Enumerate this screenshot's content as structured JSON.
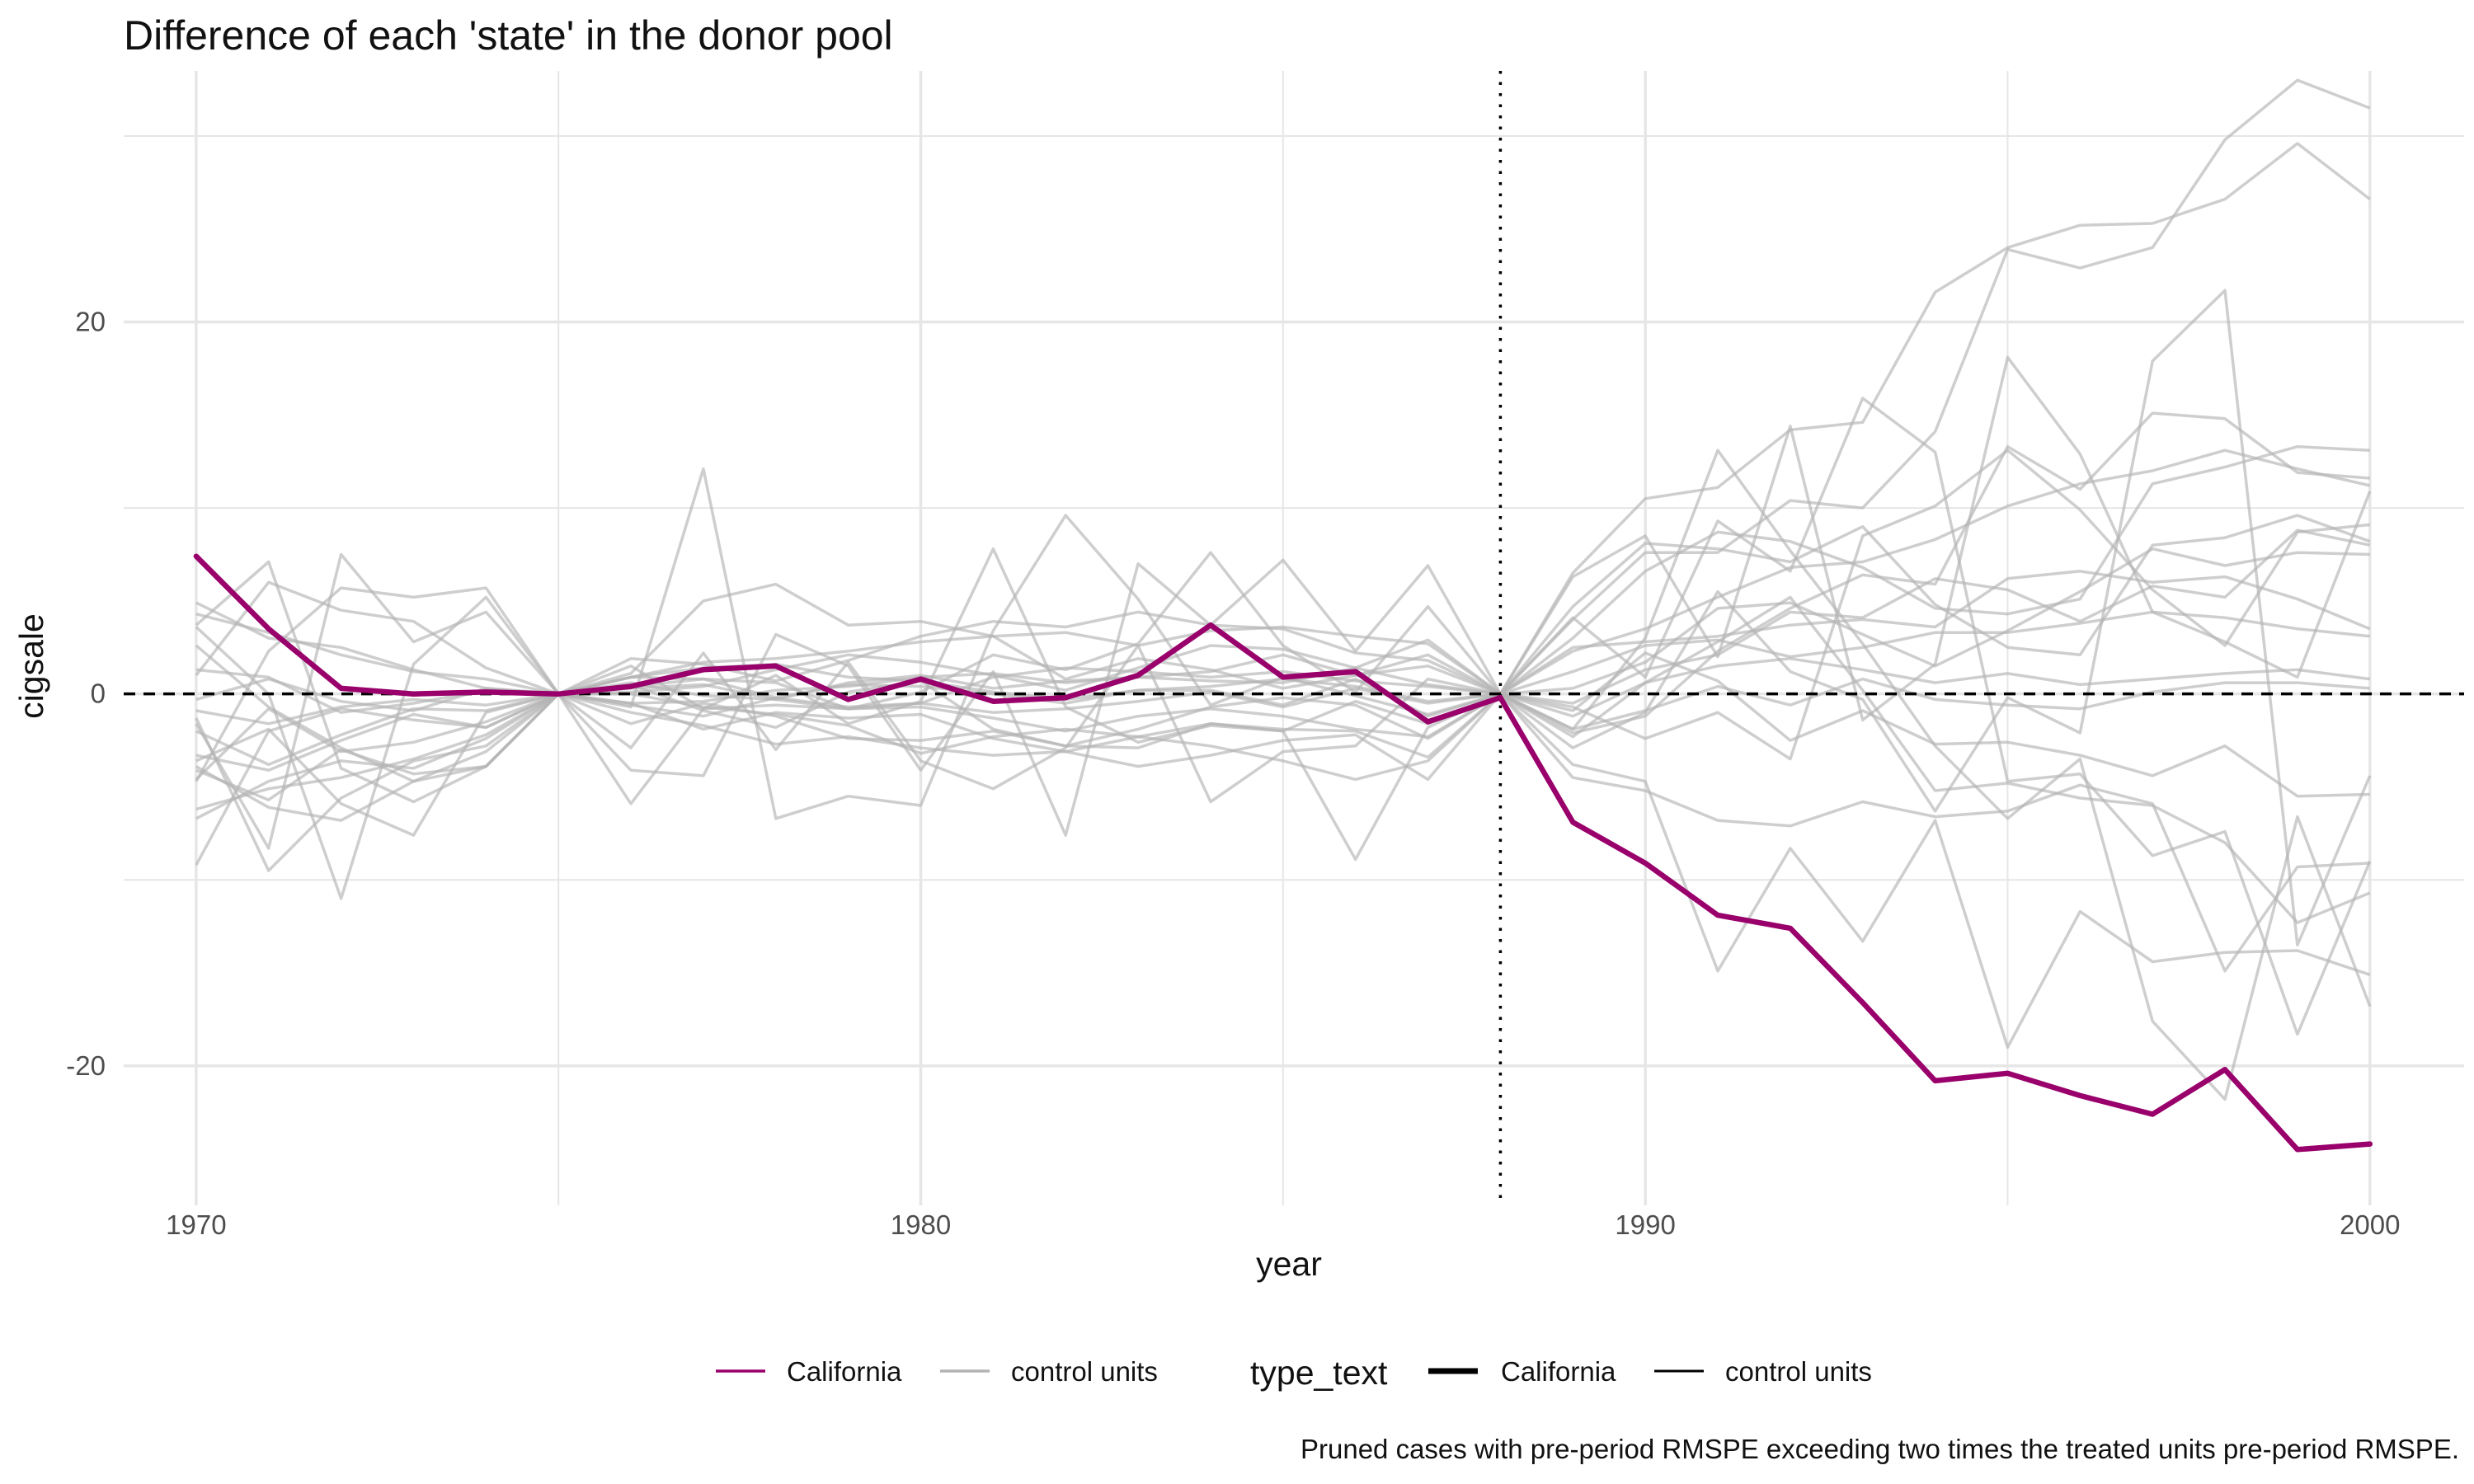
{
  "chart_data": {
    "type": "line",
    "title": "Difference of each 'state' in the donor pool",
    "xlabel": "year",
    "ylabel": "cigsale",
    "caption": "Pruned cases with pre-period RMSPE exceeding two times the treated units pre-period RMSPE.",
    "xlim": [
      1969.0,
      2001.3
    ],
    "ylim": [
      -27.5,
      33.5
    ],
    "x_ticks": [
      1970,
      1980,
      1990,
      2000
    ],
    "y_ticks": [
      -20,
      0,
      20
    ],
    "grid": true,
    "reference_lines": {
      "horizontal_dashed_y": 0,
      "vertical_dotted_x": 1988
    },
    "legend": {
      "position": "bottom",
      "colour_entries": [
        "California",
        "control units"
      ],
      "linewidth_title": "type_text",
      "linewidth_entries": [
        "California",
        "control units"
      ]
    },
    "colors": {
      "California": "#99006b",
      "control units": "#b3b3b3",
      "reference": "#000000",
      "grid": "#e6e6e6"
    },
    "x": [
      1970,
      1971,
      1972,
      1973,
      1974,
      1975,
      1976,
      1977,
      1978,
      1979,
      1980,
      1981,
      1982,
      1983,
      1984,
      1985,
      1986,
      1987,
      1988,
      1989,
      1990,
      1991,
      1992,
      1993,
      1994,
      1995,
      1996,
      1997,
      1998,
      1999,
      2000
    ],
    "series": [
      {
        "name": "California",
        "values": [
          7.4,
          3.5,
          0.3,
          0,
          0.1,
          0,
          0.4,
          1.3,
          1.5,
          -0.3,
          0.8,
          -0.4,
          -0.2,
          1.0,
          3.7,
          0.9,
          1.2,
          -1.5,
          -0.2,
          -6.9,
          -9.1,
          -11.9,
          -12.6,
          -16.6,
          -20.8,
          -20.4,
          -21.6,
          -22.6,
          -20.2,
          -24.5,
          -24.2
        ]
      },
      {
        "group": "control units",
        "values": [
          -9.2,
          -2.0,
          -0.8,
          -1.4,
          -1.8,
          0,
          0.9,
          0.8,
          0.6,
          -0.8,
          -0.5,
          0.9,
          1.4,
          1.2,
          0.9,
          1.2,
          0.7,
          0.4,
          0,
          2.3,
          3.5,
          5.2,
          6.8,
          7.1,
          8.3,
          10.1,
          11.3,
          12.0,
          13.1,
          12.1,
          11.2
        ]
      },
      {
        "group": "control units",
        "values": [
          4.3,
          3.3,
          2.1,
          1.2,
          0.8,
          0,
          0.9,
          1.7,
          1.9,
          2.3,
          2.8,
          3.1,
          3.3,
          2.6,
          3.4,
          3.6,
          3.1,
          2.7,
          0,
          6.5,
          10.5,
          11.1,
          14.2,
          14.6,
          21.6,
          24.0,
          25.2,
          25.3,
          26.6,
          29.6,
          26.6
        ]
      },
      {
        "group": "control units",
        "values": [
          -6.2,
          -5.1,
          -4.5,
          -3.5,
          -2.2,
          0,
          1.9,
          1.6,
          0.7,
          1.8,
          3.1,
          3.9,
          3.6,
          4.4,
          3.7,
          3.5,
          2.2,
          1.8,
          0,
          4.0,
          7.6,
          7.6,
          10.4,
          10.0,
          14.1,
          23.9,
          22.9,
          24.0,
          29.8,
          33.0,
          31.5
        ]
      },
      {
        "group": "control units",
        "values": [
          -3.9,
          -6.1,
          -6.8,
          -4.7,
          -3.9,
          0,
          0.9,
          1.4,
          1.6,
          0.9,
          0.7,
          0.1,
          -0.3,
          0.2,
          0.2,
          -0.6,
          0.8,
          -1.2,
          0,
          -2.1,
          -1.2,
          2.3,
          4.6,
          6.4,
          5.9,
          13.3,
          11.0,
          15.1,
          14.8,
          11.9,
          11.6
        ]
      },
      {
        "group": "control units",
        "values": [
          1.0,
          6.0,
          4.5,
          3.9,
          1.4,
          0,
          1.1,
          5.0,
          5.9,
          3.7,
          3.9,
          3.1,
          0.8,
          1.9,
          1.3,
          0.3,
          1.0,
          2.1,
          0,
          -0.7,
          -2.4,
          -1.0,
          -3.5,
          8.5,
          10.1,
          13.1,
          9.9,
          5.6,
          2.6,
          8.7,
          9.1
        ]
      },
      {
        "group": "control units",
        "values": [
          4.9,
          3.0,
          2.5,
          1.3,
          0.3,
          0,
          0.3,
          0.5,
          -0.3,
          0.6,
          1.0,
          0.3,
          0.7,
          0.9,
          1.2,
          2.1,
          1.0,
          1.5,
          0,
          3.0,
          6.6,
          8.7,
          8.2,
          6.8,
          4.6,
          4.3,
          5.1,
          11.3,
          12.2,
          13.3,
          13.1
        ]
      },
      {
        "group": "control units",
        "values": [
          -3.3,
          -4.1,
          -2.5,
          -1.1,
          -1.8,
          0,
          0.5,
          -0.9,
          -1.8,
          0.1,
          0.7,
          -1.9,
          -2.8,
          -1.9,
          -0.7,
          -0.2,
          -0.6,
          -2.4,
          0,
          4.7,
          8.1,
          7.8,
          7.1,
          9.0,
          4.8,
          2.5,
          2.1,
          8.0,
          8.4,
          9.6,
          8.2
        ]
      },
      {
        "group": "control units",
        "values": [
          2.6,
          -0.7,
          -2.9,
          -4.7,
          -3.1,
          0,
          0.6,
          -0.1,
          -0.3,
          -0.8,
          -0.7,
          -1.3,
          -2.0,
          -1.2,
          -0.8,
          -1.2,
          -1.9,
          -2.3,
          0,
          -0.5,
          1.3,
          2.1,
          4.4,
          4.1,
          6.2,
          5.6,
          3.9,
          5.8,
          5.2,
          8.8,
          8.0
        ]
      },
      {
        "group": "control units",
        "values": [
          -4.6,
          -0.8,
          -3.1,
          -2.6,
          -1.5,
          0,
          -0.5,
          -1.9,
          -1.0,
          -1.3,
          -1.1,
          -2.4,
          -3.1,
          -2.3,
          -1.6,
          -2.0,
          -0.4,
          -1.6,
          0,
          0.3,
          1.7,
          4.6,
          4.9,
          3.2,
          1.5,
          3.4,
          5.5,
          7.8,
          6.9,
          7.6,
          7.5
        ]
      },
      {
        "group": "control units",
        "values": [
          -2.0,
          -3.8,
          -2.2,
          -0.8,
          -0.9,
          0,
          0.1,
          0.4,
          1.3,
          2.1,
          1.7,
          1.0,
          0.2,
          1.4,
          2.6,
          2.4,
          1.4,
          2.9,
          0,
          2.5,
          2.8,
          3.1,
          3.7,
          4.0,
          3.6,
          6.2,
          6.6,
          6.0,
          6.3,
          5.1,
          3.5
        ]
      },
      {
        "group": "control units",
        "values": [
          1.3,
          0.9,
          -1.0,
          -0.5,
          0.2,
          0,
          -0.5,
          -0.4,
          0.2,
          0.4,
          0.9,
          1.1,
          0.6,
          0.9,
          0.7,
          0.6,
          1.4,
          0.5,
          0,
          1.2,
          2.6,
          2.9,
          2.0,
          2.5,
          3.3,
          3.3,
          3.8,
          4.4,
          4.1,
          3.5,
          3.1
        ]
      },
      {
        "group": "control units",
        "values": [
          -0.9,
          -1.6,
          -0.7,
          -0.3,
          -0.6,
          0,
          0.4,
          0.8,
          -0.2,
          0.5,
          0.4,
          0.0,
          -0.5,
          0.2,
          0.4,
          0.8,
          0.4,
          -0.4,
          0,
          -1.2,
          0.6,
          1.5,
          1.9,
          1.3,
          0.6,
          1.1,
          0.5,
          0.8,
          1.1,
          1.3,
          0.8
        ]
      },
      {
        "group": "control units",
        "values": [
          -0.3,
          0.8,
          -0.4,
          -0.9,
          0.3,
          0,
          -0.6,
          -1.2,
          -0.2,
          -0.7,
          -0.5,
          -1.0,
          -0.8,
          -0.4,
          0.1,
          -0.7,
          0.3,
          -0.5,
          0,
          -1.9,
          -0.9,
          0.4,
          -0.6,
          0.8,
          -0.3,
          -0.6,
          -0.8,
          0.1,
          0.6,
          0.6,
          0.3
        ]
      },
      {
        "group": "control units",
        "values": [
          -4.1,
          -5.7,
          -3.0,
          -4.3,
          -3.9,
          0,
          0.0,
          -0.7,
          -1.1,
          -1.7,
          -3.2,
          -2.3,
          -1.9,
          -2.3,
          -2.8,
          -3.6,
          -4.6,
          -3.6,
          0,
          -0.9,
          2.2,
          0.7,
          -2.5,
          -0.9,
          -2.7,
          -2.6,
          -3.3,
          -4.4,
          -2.8,
          -5.5,
          -5.4
        ]
      },
      {
        "group": "control units",
        "values": [
          -6.7,
          -4.7,
          -3.6,
          -4.0,
          -2.4,
          0,
          -1.0,
          -1.7,
          -2.7,
          -2.3,
          -2.9,
          -3.3,
          -3.1,
          -3.9,
          -3.3,
          -2.5,
          -2.2,
          -4.6,
          0,
          -2.3,
          0.6,
          2.8,
          5.2,
          0.2,
          -5.2,
          -4.8,
          -5.6,
          -6.0,
          -8.0,
          -12.3,
          -10.7
        ]
      },
      {
        "group": "control units",
        "values": [
          3.7,
          7.1,
          -4.0,
          -5.8,
          -3.9,
          0,
          1.5,
          -0.8,
          1.0,
          -1.6,
          -0.4,
          7.8,
          -0.7,
          -2.6,
          -1.7,
          -2.0,
          -8.9,
          -1.8,
          0,
          -3.8,
          -4.7,
          -14.9,
          -8.3,
          -13.3,
          -6.8,
          -19.0,
          -11.7,
          -14.4,
          -13.9,
          -13.8,
          -15.1
        ]
      },
      {
        "group": "control units",
        "values": [
          -1.3,
          -9.5,
          -5.6,
          -3.6,
          -2.8,
          0,
          -1.6,
          -0.5,
          -1.2,
          -2.4,
          -2.5,
          -2.0,
          -2.8,
          -2.9,
          -1.6,
          -1.9,
          -2.0,
          -3.4,
          0,
          -4.5,
          -5.2,
          -6.8,
          -7.1,
          -5.8,
          -6.6,
          -6.3,
          -4.9,
          -5.9,
          -14.9,
          -9.3,
          -9.1
        ]
      },
      {
        "group": "control units",
        "values": [
          -3.6,
          -1.9,
          -5.9,
          -7.6,
          -1.0,
          0,
          -0.7,
          12.1,
          -6.7,
          -5.5,
          -6.0,
          3.4,
          9.6,
          5.1,
          -0.6,
          0.9,
          -0.1,
          -1.1,
          0,
          -1.9,
          3.0,
          13.1,
          7.7,
          2.7,
          -2.8,
          -6.7,
          -3.5,
          -17.6,
          -21.8,
          -6.6,
          -16.8
        ]
      },
      {
        "group": "control units",
        "values": [
          3.6,
          0.0,
          -11.0,
          1.6,
          5.2,
          0,
          -4.1,
          -4.4,
          3.2,
          1.5,
          -4.1,
          1.2,
          -7.6,
          7.0,
          3.7,
          7.2,
          2.3,
          6.9,
          0,
          6.3,
          8.5,
          2.0,
          14.4,
          -1.4,
          1.6,
          18.1,
          12.9,
          4.4,
          2.8,
          0.9,
          10.9
        ]
      },
      {
        "group": "control units",
        "values": [
          -4.7,
          2.3,
          5.7,
          5.2,
          5.7,
          0,
          -5.9,
          -0.8,
          -0.6,
          -0.8,
          0.1,
          2.1,
          1.3,
          2.7,
          7.6,
          2.6,
          0.1,
          4.7,
          0,
          4.1,
          0.9,
          9.3,
          6.6,
          15.9,
          13.0,
          -4.7,
          -4.3,
          -8.7,
          -7.4,
          -18.3,
          -9.0
        ]
      },
      {
        "group": "control units",
        "values": [
          -1.6,
          -8.3,
          7.5,
          2.8,
          4.4,
          0,
          -2.9,
          2.2,
          -3.0,
          1.7,
          -3.6,
          -5.1,
          -2.9,
          2.6,
          -5.8,
          -3.1,
          -2.8,
          0.8,
          0,
          -2.9,
          -1.0,
          5.5,
          1.2,
          -0.3,
          -6.3,
          -0.2,
          -2.1,
          17.9,
          21.7,
          -13.5,
          -4.4
        ]
      }
    ]
  }
}
